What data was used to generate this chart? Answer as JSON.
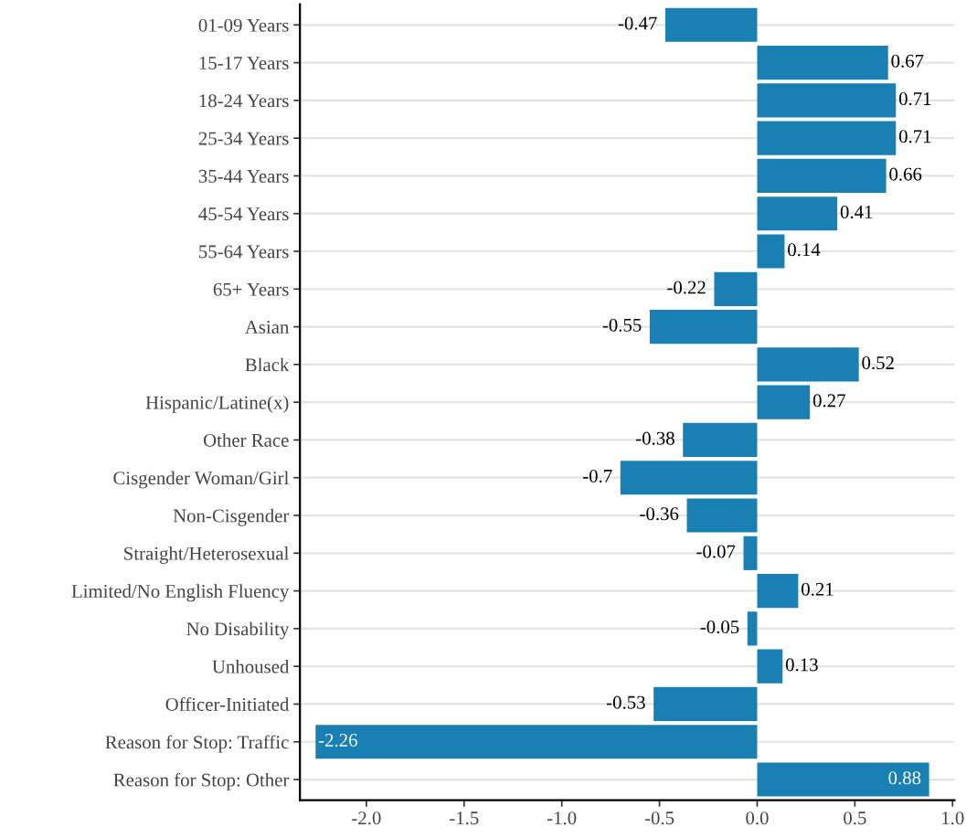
{
  "chart_data": {
    "type": "bar",
    "orientation": "horizontal",
    "categories": [
      "01-09 Years",
      "15-17 Years",
      "18-24 Years",
      "25-34 Years",
      "35-44 Years",
      "45-54 Years",
      "55-64 Years",
      "65+ Years",
      "Asian",
      "Black",
      "Hispanic/Latine(x)",
      "Other Race",
      "Cisgender Woman/Girl",
      "Non-Cisgender",
      "Straight/Heterosexual",
      "Limited/No English Fluency",
      "No Disability",
      "Unhoused",
      "Officer-Initiated",
      "Reason for Stop: Traffic",
      "Reason for Stop: Other"
    ],
    "values": [
      -0.47,
      0.67,
      0.71,
      0.71,
      0.66,
      0.41,
      0.14,
      -0.22,
      -0.55,
      0.52,
      0.27,
      -0.38,
      -0.7,
      -0.36,
      -0.07,
      0.21,
      -0.05,
      0.13,
      -0.53,
      -2.26,
      0.88
    ],
    "color": "#1a7fb2",
    "data_labels": true,
    "xlim": [
      -2.34,
      1.01
    ],
    "xticks": [
      {
        "value": -2.0,
        "label": "-2.0"
      },
      {
        "value": -1.5,
        "label": "-1.5"
      },
      {
        "value": -1.0,
        "label": "-1.0"
      },
      {
        "value": -0.5,
        "label": "-0.5"
      },
      {
        "value": 0.0,
        "label": "0.0"
      },
      {
        "value": 0.5,
        "label": "0.5"
      },
      {
        "value": 1.0,
        "label": "1.0"
      }
    ],
    "grid": "y"
  }
}
